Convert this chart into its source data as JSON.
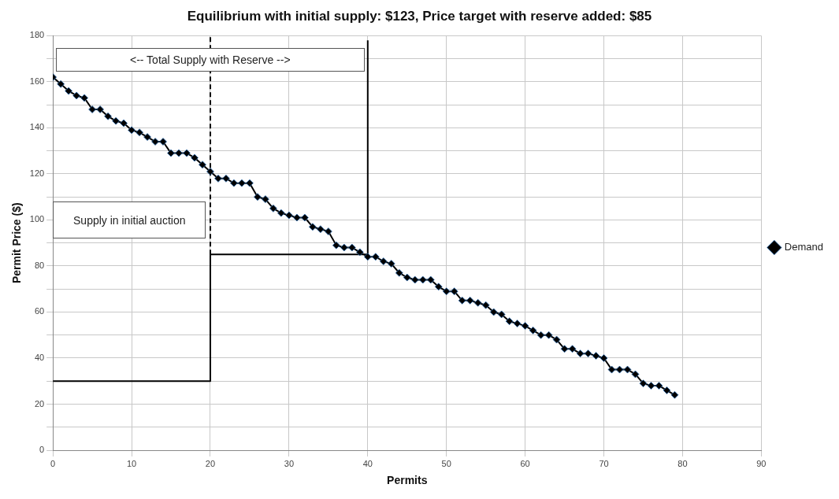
{
  "chart_data": {
    "type": "line",
    "title": "Equilibrium with initial supply: $123, Price target with reserve added: $85",
    "xlabel": "Permits",
    "ylabel": "Permit Price ($)",
    "x": [
      0,
      1,
      2,
      3,
      4,
      5,
      6,
      7,
      8,
      9,
      10,
      11,
      12,
      13,
      14,
      15,
      16,
      17,
      18,
      19,
      20,
      21,
      22,
      23,
      24,
      25,
      26,
      27,
      28,
      29,
      30,
      31,
      32,
      33,
      34,
      35,
      36,
      37,
      38,
      39,
      40,
      41,
      42,
      43,
      44,
      45,
      46,
      47,
      48,
      49,
      50,
      51,
      52,
      53,
      54,
      55,
      56,
      57,
      58,
      59,
      60,
      61,
      62,
      63,
      64,
      65,
      66,
      67,
      68,
      69,
      70,
      71,
      72,
      73,
      74,
      75,
      76,
      77,
      78,
      79
    ],
    "series": [
      {
        "name": "Demand",
        "color": "#000000",
        "marker": "diamond",
        "values": [
          162,
          159,
          156,
          154,
          153,
          148,
          148,
          145,
          143,
          142,
          139,
          138,
          136,
          134,
          134,
          129,
          129,
          129,
          127,
          124,
          121,
          118,
          118,
          116,
          116,
          116,
          110,
          109,
          105,
          103,
          102,
          101,
          101,
          97,
          96,
          95,
          89,
          88,
          88,
          86,
          84,
          84,
          82,
          81,
          77,
          75,
          74,
          74,
          74,
          71,
          69,
          69,
          65,
          65,
          64,
          63,
          60,
          59,
          56,
          55,
          54,
          52,
          50,
          50,
          48,
          44,
          44,
          42,
          42,
          41,
          40,
          35,
          35,
          35,
          33,
          29,
          28,
          28,
          26,
          24
        ]
      },
      {
        "type": "line",
        "color": "#000000",
        "marker": "none",
        "x": [
          0,
          20,
          20,
          40,
          40
        ],
        "values": [
          30,
          30,
          85,
          85,
          178
        ]
      },
      {
        "type": "line",
        "color": "#000000",
        "marker": "none",
        "line_style": "dashed",
        "x": [
          20,
          20
        ],
        "values": [
          85,
          180
        ]
      }
    ],
    "xlim": [
      0,
      90
    ],
    "xticks": [
      0,
      10,
      20,
      30,
      40,
      50,
      60,
      70,
      80,
      90
    ],
    "ylim": [
      0,
      180
    ],
    "yticks": [
      0,
      {
        "value": 10,
        "label": null
      },
      20,
      {
        "value": 30,
        "label": null
      },
      40,
      {
        "value": 50,
        "label": null
      },
      60,
      {
        "value": 70,
        "label": null
      },
      80,
      {
        "value": 90,
        "label": null
      },
      100,
      {
        "value": 110,
        "label": null
      },
      120,
      {
        "value": 130,
        "label": null
      },
      140,
      {
        "value": 150,
        "label": null
      },
      160,
      {
        "value": 170,
        "label": null
      },
      180
    ],
    "grid": true,
    "legend": "right",
    "annotations": [
      "<-- Total Supply with Reserve -->",
      "Supply in initial auction"
    ]
  }
}
